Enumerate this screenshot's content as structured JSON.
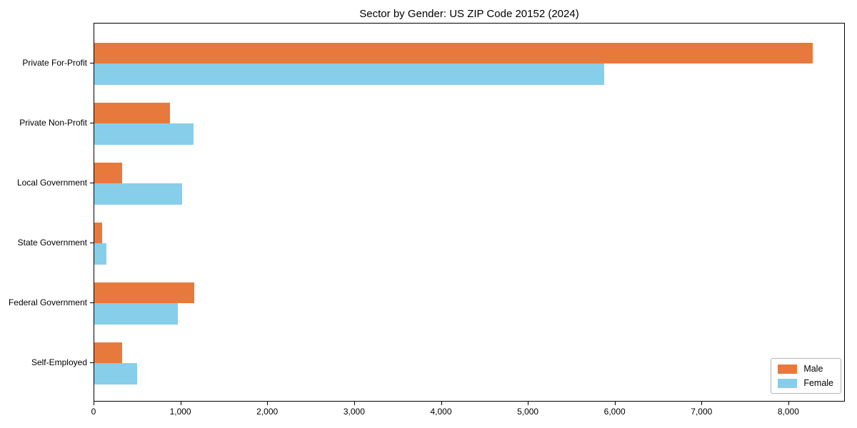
{
  "chart_data": {
    "type": "bar",
    "orientation": "horizontal",
    "title": "Sector by Gender: US ZIP Code 20152 (2024)",
    "categories": [
      "Private For-Profit",
      "Private Non-Profit",
      "Local Government",
      "State Government",
      "Federal Government",
      "Self-Employed"
    ],
    "series": [
      {
        "name": "Male",
        "color": "#e8793d",
        "values": [
          8270,
          870,
          320,
          90,
          1150,
          320
        ]
      },
      {
        "name": "Female",
        "color": "#87ceeb",
        "values": [
          5870,
          1140,
          1010,
          140,
          960,
          490
        ]
      }
    ],
    "xlim": [
      0,
      8650
    ],
    "xticks": [
      0,
      1000,
      2000,
      3000,
      4000,
      5000,
      6000,
      7000,
      8000
    ],
    "xtick_labels": [
      "0",
      "1,000",
      "2,000",
      "3,000",
      "4,000",
      "5,000",
      "6,000",
      "7,000",
      "8,000"
    ],
    "xlabel": "",
    "ylabel": "",
    "grid": false,
    "legend_position": "lower right",
    "axis_color": "#000000",
    "background_color": "#ffffff"
  }
}
